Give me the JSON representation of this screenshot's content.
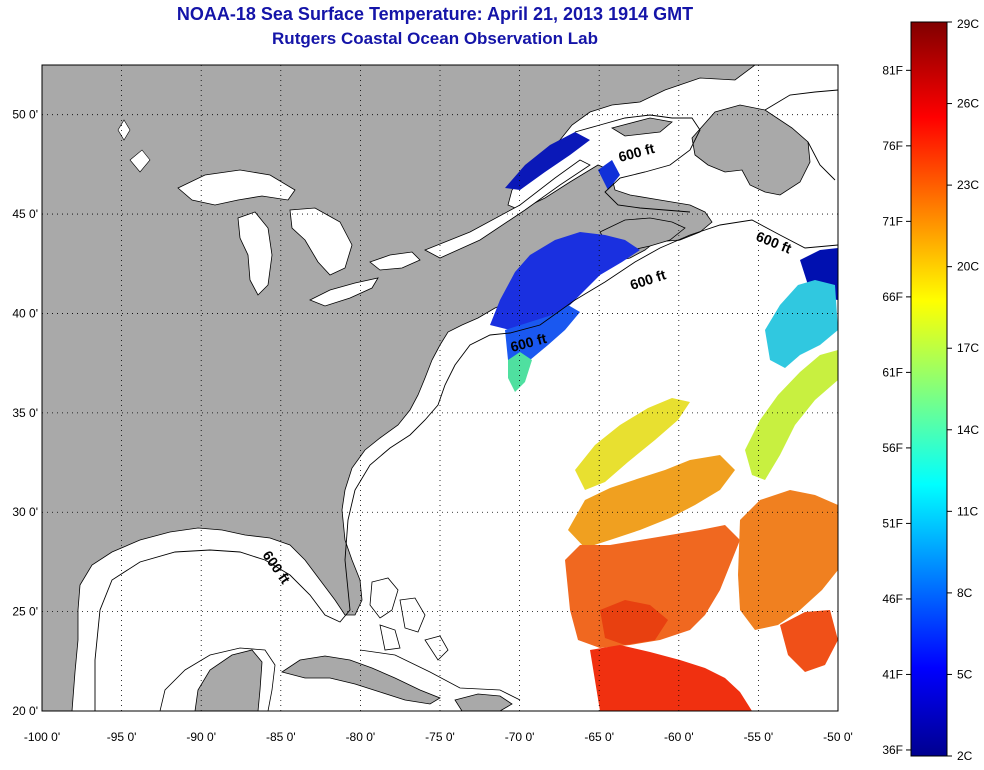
{
  "title": "NOAA-18 Sea Surface Temperature:  April 21, 2013 1914 GMT",
  "subtitle": "Rutgers Coastal Ocean Observation Lab",
  "axes": {
    "x_ticks": [
      "-100 0'",
      "-95 0'",
      "-90 0'",
      "-85 0'",
      "-80 0'",
      "-75 0'",
      "-70 0'",
      "-65 0'",
      "-60 0'",
      "-55 0'",
      "-50 0'"
    ],
    "x_values": [
      -100,
      -95,
      -90,
      -85,
      -80,
      -75,
      -70,
      -65,
      -60,
      -55,
      -50
    ],
    "y_ticks": [
      "20 0'",
      "25 0'",
      "30 0'",
      "35 0'",
      "40 0'",
      "45 0'",
      "50 0'"
    ],
    "y_values": [
      20,
      25,
      30,
      35,
      40,
      45,
      50
    ],
    "lon_range": [
      -100,
      -50
    ],
    "lat_range": [
      20,
      52.5
    ],
    "grid": "dotted"
  },
  "contour_labels": [
    "600 ft",
    "600 ft",
    "600 ft",
    "600 ft",
    "600 ft"
  ],
  "colorbar": {
    "fahrenheit_labels": [
      "81F",
      "76F",
      "71F",
      "66F",
      "61F",
      "56F",
      "51F",
      "46F",
      "41F",
      "36F"
    ],
    "fahrenheit_values": [
      81,
      76,
      71,
      66,
      61,
      56,
      51,
      46,
      41,
      36
    ],
    "celsius_labels": [
      "29C",
      "26C",
      "23C",
      "20C",
      "17C",
      "14C",
      "11C",
      "8C",
      "5C",
      "2C"
    ],
    "celsius_values": [
      29,
      26,
      23,
      20,
      17,
      14,
      11,
      8,
      5,
      2
    ],
    "range_c": [
      2,
      29
    ],
    "colormap": "jet"
  },
  "colors": {
    "land": "#a9a9a9",
    "ocean": "#ffffff",
    "title": "#1414a8"
  }
}
